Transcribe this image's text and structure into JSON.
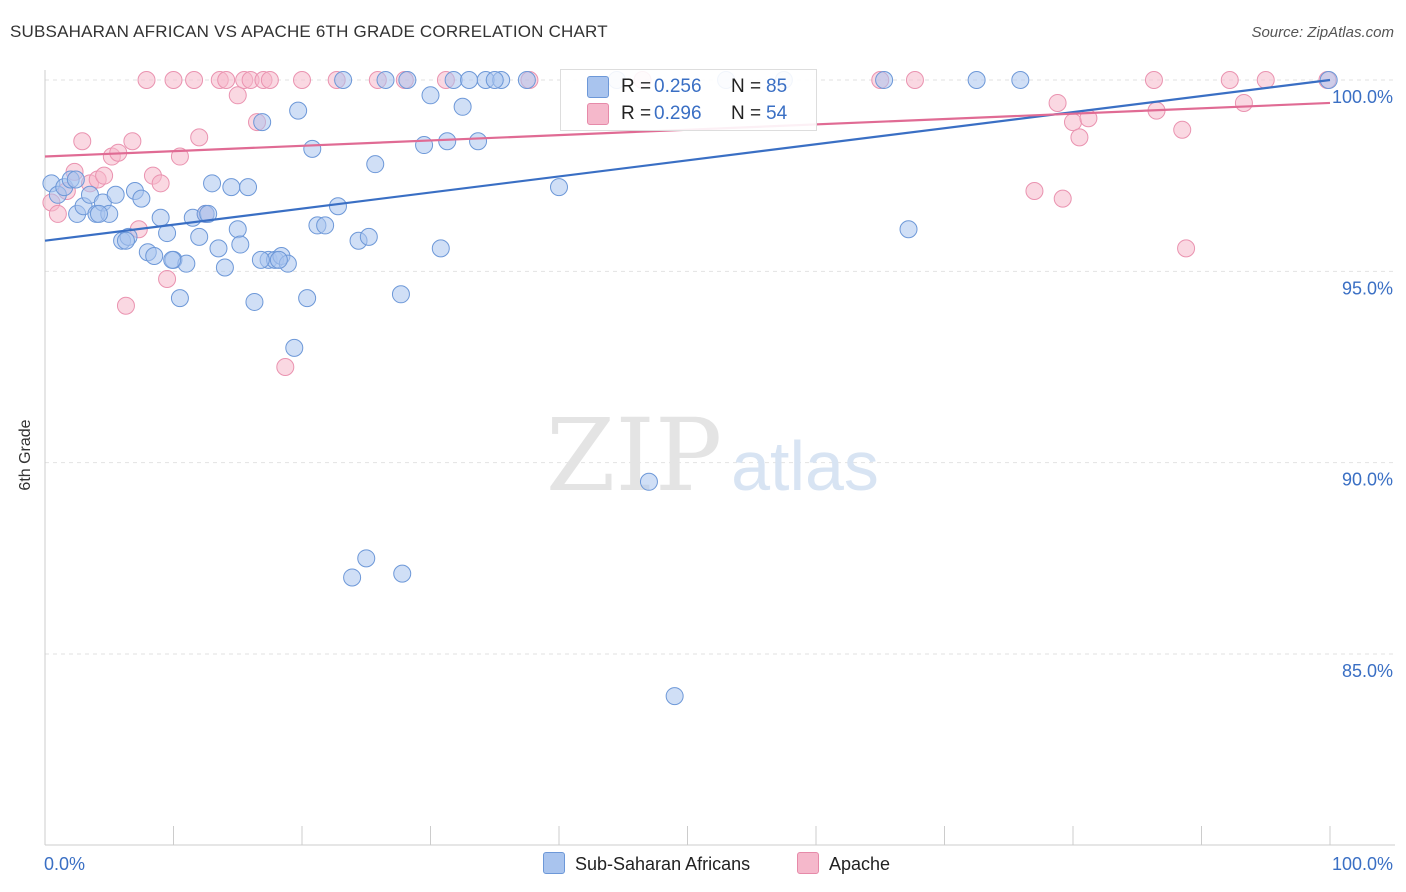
{
  "header": {
    "title": "SUBSAHARAN AFRICAN VS APACHE 6TH GRADE CORRELATION CHART",
    "source": "Source: ZipAtlas.com"
  },
  "colors": {
    "blue": "#3a6fc4",
    "blue_fill": "#a9c4ee",
    "pink": "#e06b94",
    "pink_fill": "#f5b8cb",
    "grid": "#e2e2e2",
    "tick_label": "#3a6fc4"
  },
  "legend": {
    "blue": {
      "r_label": "R =",
      "r_value": "0.256",
      "n_label": "N =",
      "n_value": "85"
    },
    "pink": {
      "r_label": "R =",
      "r_value": "0.296",
      "n_label": "N =",
      "n_value": "54"
    }
  },
  "bottom_legend": {
    "blue_label": "Sub-Saharan Africans",
    "pink_label": "Apache"
  },
  "watermark": {
    "zip": "ZIP",
    "atlas": "atlas"
  },
  "chart_data": {
    "type": "scatter",
    "title": "SUBSAHARAN AFRICAN VS APACHE 6TH GRADE CORRELATION CHART",
    "xlabel": "",
    "ylabel": "6th Grade",
    "xlim": [
      0,
      100
    ],
    "ylim": [
      80.5,
      100.8
    ],
    "x_tick_labels": [
      "0.0%",
      "100.0%"
    ],
    "y_ticks": [
      100,
      95,
      90,
      85
    ],
    "y_tick_labels": [
      "100.0%",
      "95.0%",
      "90.0%",
      "85.0%"
    ],
    "grid": true,
    "series": [
      {
        "name": "Sub-Saharan Africans",
        "color": "#3a6fc4",
        "R": 0.256,
        "N": 85,
        "trend": {
          "x": [
            0,
            100
          ],
          "y": [
            95.8,
            100.0
          ]
        },
        "points": [
          [
            0.5,
            97.3
          ],
          [
            1.0,
            97.0
          ],
          [
            1.5,
            97.2
          ],
          [
            2.0,
            97.4
          ],
          [
            2.5,
            96.5
          ],
          [
            3.0,
            96.7
          ],
          [
            3.5,
            97.0
          ],
          [
            4.0,
            96.5
          ],
          [
            4.5,
            96.8
          ],
          [
            5.0,
            96.5
          ],
          [
            5.5,
            97.0
          ],
          [
            6.0,
            95.8
          ],
          [
            6.5,
            95.9
          ],
          [
            7.0,
            97.1
          ],
          [
            7.5,
            96.9
          ],
          [
            8.0,
            95.5
          ],
          [
            8.5,
            95.4
          ],
          [
            9.0,
            96.4
          ],
          [
            9.5,
            96.0
          ],
          [
            10.0,
            95.3
          ],
          [
            10.5,
            94.3
          ],
          [
            11.0,
            95.2
          ],
          [
            11.5,
            96.4
          ],
          [
            12.0,
            95.9
          ],
          [
            12.5,
            96.5
          ],
          [
            13.0,
            97.3
          ],
          [
            13.5,
            95.6
          ],
          [
            14.0,
            95.1
          ],
          [
            14.5,
            97.2
          ],
          [
            15.0,
            96.1
          ],
          [
            15.2,
            95.7
          ],
          [
            15.8,
            97.2
          ],
          [
            16.3,
            94.2
          ],
          [
            16.9,
            98.9
          ],
          [
            17.4,
            95.3
          ],
          [
            17.9,
            95.3
          ],
          [
            18.4,
            95.4
          ],
          [
            18.9,
            95.2
          ],
          [
            19.4,
            93.0
          ],
          [
            19.7,
            99.2
          ],
          [
            20.4,
            94.3
          ],
          [
            20.8,
            98.2
          ],
          [
            21.2,
            96.2
          ],
          [
            21.8,
            96.2
          ],
          [
            22.8,
            96.7
          ],
          [
            23.2,
            100.0
          ],
          [
            23.9,
            87.0
          ],
          [
            24.4,
            95.8
          ],
          [
            25.0,
            87.5
          ],
          [
            25.2,
            95.9
          ],
          [
            25.7,
            97.8
          ],
          [
            27.7,
            94.4
          ],
          [
            27.8,
            87.1
          ],
          [
            29.5,
            98.3
          ],
          [
            30.0,
            99.6
          ],
          [
            30.8,
            95.6
          ],
          [
            31.3,
            98.4
          ],
          [
            31.8,
            100.0
          ],
          [
            32.5,
            99.3
          ],
          [
            33.0,
            100.0
          ],
          [
            33.7,
            98.4
          ],
          [
            34.3,
            100.0
          ],
          [
            35.5,
            100.0
          ],
          [
            37.5,
            100.0
          ],
          [
            40.0,
            97.2
          ],
          [
            44.5,
            100.0
          ],
          [
            47.0,
            89.5
          ],
          [
            49.0,
            83.9
          ],
          [
            53.0,
            100.0
          ],
          [
            57.5,
            100.0
          ],
          [
            65.3,
            100.0
          ],
          [
            67.2,
            96.1
          ],
          [
            72.5,
            100.0
          ],
          [
            75.9,
            100.0
          ],
          [
            99.9,
            100.0
          ],
          [
            6.3,
            95.8
          ],
          [
            16.8,
            95.3
          ],
          [
            26.5,
            100.0
          ],
          [
            9.9,
            95.3
          ],
          [
            18.2,
            95.3
          ],
          [
            2.4,
            97.4
          ],
          [
            4.2,
            96.5
          ],
          [
            12.7,
            96.5
          ],
          [
            28.2,
            100.0
          ],
          [
            35.0,
            100.0
          ]
        ]
      },
      {
        "name": "Apache",
        "color": "#e06b94",
        "R": 0.296,
        "N": 54,
        "trend": {
          "x": [
            0,
            100
          ],
          "y": [
            98.0,
            99.4
          ]
        },
        "points": [
          [
            0.5,
            96.8
          ],
          [
            1.0,
            96.5
          ],
          [
            1.7,
            97.1
          ],
          [
            2.3,
            97.6
          ],
          [
            2.9,
            98.4
          ],
          [
            3.5,
            97.3
          ],
          [
            4.1,
            97.4
          ],
          [
            4.6,
            97.5
          ],
          [
            5.2,
            98.0
          ],
          [
            5.7,
            98.1
          ],
          [
            6.3,
            94.1
          ],
          [
            6.8,
            98.4
          ],
          [
            7.3,
            96.1
          ],
          [
            7.9,
            100.0
          ],
          [
            8.4,
            97.5
          ],
          [
            9.0,
            97.3
          ],
          [
            9.5,
            94.8
          ],
          [
            10.0,
            100.0
          ],
          [
            10.5,
            98.0
          ],
          [
            11.6,
            100.0
          ],
          [
            12.0,
            98.5
          ],
          [
            12.5,
            96.5
          ],
          [
            13.6,
            100.0
          ],
          [
            14.1,
            100.0
          ],
          [
            15.0,
            99.6
          ],
          [
            15.5,
            100.0
          ],
          [
            16.0,
            100.0
          ],
          [
            16.5,
            98.9
          ],
          [
            17.0,
            100.0
          ],
          [
            17.5,
            100.0
          ],
          [
            18.7,
            92.5
          ],
          [
            20.0,
            100.0
          ],
          [
            22.7,
            100.0
          ],
          [
            25.9,
            100.0
          ],
          [
            28.0,
            100.0
          ],
          [
            31.2,
            100.0
          ],
          [
            37.7,
            100.0
          ],
          [
            46.5,
            100.0
          ],
          [
            65.0,
            100.0
          ],
          [
            67.7,
            100.0
          ],
          [
            77.0,
            97.1
          ],
          [
            78.8,
            99.4
          ],
          [
            79.2,
            96.9
          ],
          [
            80.0,
            98.9
          ],
          [
            80.5,
            98.5
          ],
          [
            81.2,
            99.0
          ],
          [
            86.3,
            100.0
          ],
          [
            86.5,
            99.2
          ],
          [
            88.5,
            98.7
          ],
          [
            88.8,
            95.6
          ],
          [
            92.2,
            100.0
          ],
          [
            93.3,
            99.4
          ],
          [
            95.0,
            100.0
          ],
          [
            99.8,
            100.0
          ]
        ]
      }
    ]
  }
}
